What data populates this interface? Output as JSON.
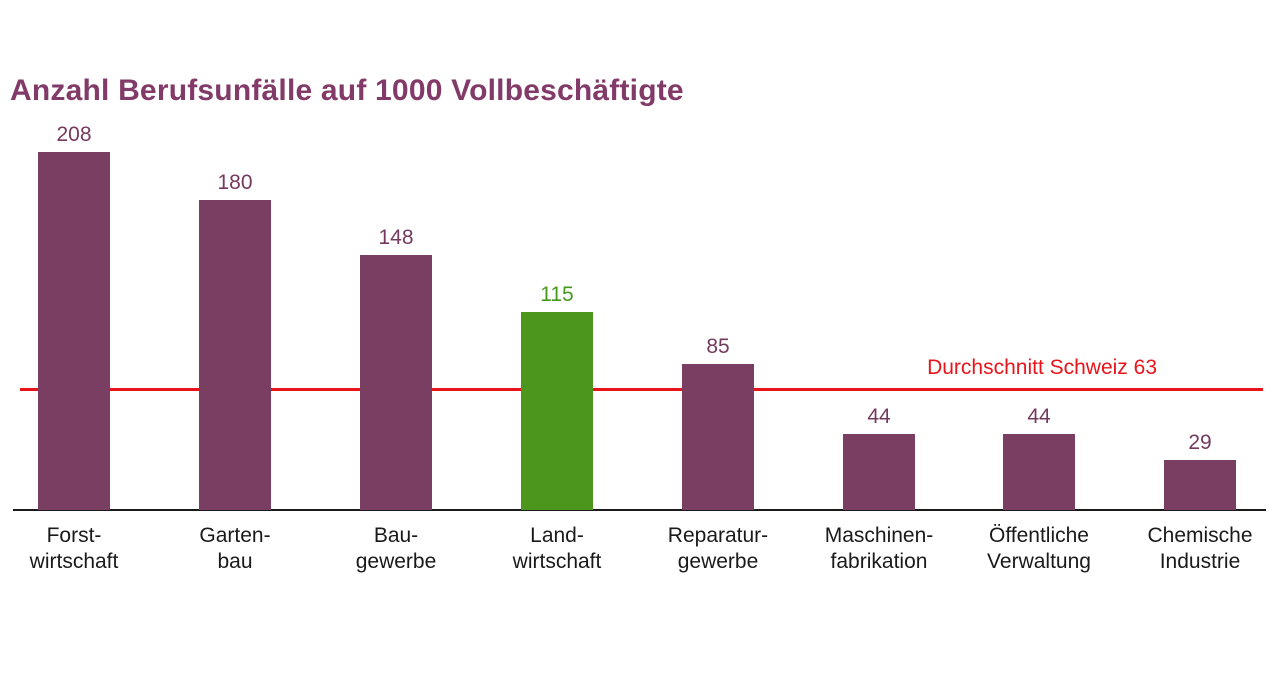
{
  "title": "Anzahl Berufsunfälle auf 1000 Vollbeschäftigte",
  "colors": {
    "bar": "#7b3e63",
    "bar_highlight": "#4d961e",
    "title_text": "#823a68",
    "value_label": "#753a5e",
    "value_label_highlight": "#46991c",
    "average_line": "#e8141a",
    "axis": "#1a1a1a",
    "category_label": "#1a1a1a",
    "background": "#ffffff"
  },
  "chart_data": {
    "type": "bar",
    "title": "Anzahl Berufsunfälle auf 1000 Vollbeschäftigte",
    "categories": [
      "Forstwirtschaft",
      "Gartenbau",
      "Baugewerbe",
      "Landwirtschaft",
      "Reparaturgewerbe",
      "Maschinenfabrikation",
      "Öffentliche Verwaltung",
      "Chemische Industrie"
    ],
    "category_label_lines": [
      [
        "Forst-",
        "wirtschaft"
      ],
      [
        "Garten-",
        "bau"
      ],
      [
        "Bau-",
        "gewerbe"
      ],
      [
        "Land-",
        "wirtschaft"
      ],
      [
        "Reparatur-",
        "gewerbe"
      ],
      [
        "Maschinen-",
        "fabrikation"
      ],
      [
        "Öffentliche",
        "Verwaltung"
      ],
      [
        "Chemische",
        "Industrie"
      ]
    ],
    "values": [
      208,
      180,
      148,
      115,
      85,
      44,
      44,
      29
    ],
    "highlight_index": 3,
    "average_line": {
      "label": "Durchschnitt Schweiz 63",
      "value": 63
    },
    "xlabel": "",
    "ylabel": "",
    "grid": false,
    "legend": false,
    "data_labels": true
  }
}
